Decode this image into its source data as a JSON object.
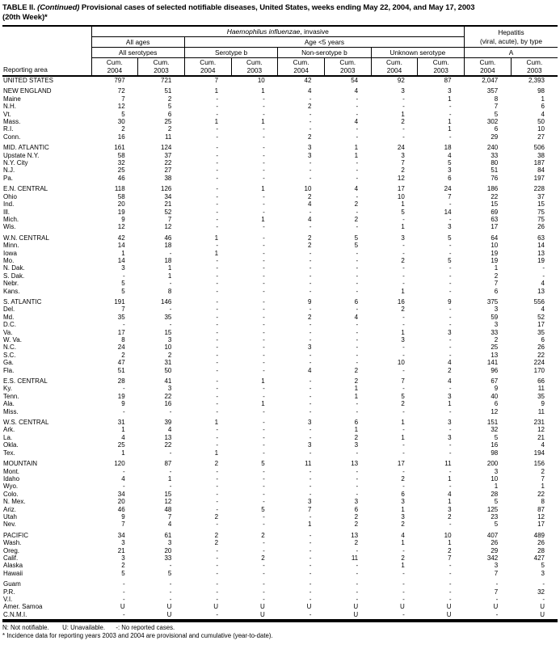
{
  "title": {
    "part1": "TABLE II. ",
    "continued": "(Continued)",
    "part2": " Provisional cases of selected notifiable diseases, United States, weeks ending May 22, 2004, and May 17, 2003",
    "line2": "(20th Week)*"
  },
  "header": {
    "reporting_area": "Reporting area",
    "hib_italic": "Haemophilus influenzae",
    "hib_rest": ", invasive",
    "hepatitis_line1": "Hepatitis",
    "hepatitis_line2": "(viral, acute), by type",
    "all_ages": "All ages",
    "age_under5": "Age <5 years",
    "all_serotypes": "All serotypes",
    "serotype_b": "Serotype b",
    "non_serotype_b": "Non-serotype b",
    "unknown_serotype": "Unknown serotype",
    "hep_a": "A",
    "cum_label": "Cum.",
    "years": [
      "2004",
      "2003"
    ]
  },
  "table": {
    "groups": [
      {
        "rows": [
          [
            "UNITED STATES",
            "797",
            "721",
            "7",
            "10",
            "42",
            "54",
            "92",
            "87",
            "2,047",
            "2,393"
          ]
        ]
      },
      {
        "rows": [
          [
            "NEW ENGLAND",
            "72",
            "51",
            "1",
            "1",
            "4",
            "4",
            "3",
            "3",
            "357",
            "98"
          ],
          [
            "Maine",
            "7",
            "2",
            "-",
            "-",
            "-",
            "-",
            "-",
            "1",
            "8",
            "1"
          ],
          [
            "N.H.",
            "12",
            "5",
            "-",
            "-",
            "2",
            "-",
            "-",
            "-",
            "7",
            "6"
          ],
          [
            "Vt.",
            "5",
            "6",
            "-",
            "-",
            "-",
            "-",
            "1",
            "-",
            "5",
            "4"
          ],
          [
            "Mass.",
            "30",
            "25",
            "1",
            "1",
            "-",
            "4",
            "2",
            "1",
            "302",
            "50"
          ],
          [
            "R.I.",
            "2",
            "2",
            "-",
            "-",
            "-",
            "-",
            "-",
            "1",
            "6",
            "10"
          ],
          [
            "Conn.",
            "16",
            "11",
            "-",
            "-",
            "2",
            "-",
            "-",
            "-",
            "29",
            "27"
          ]
        ]
      },
      {
        "rows": [
          [
            "MID. ATLANTIC",
            "161",
            "124",
            "-",
            "-",
            "3",
            "1",
            "24",
            "18",
            "240",
            "506"
          ],
          [
            "Upstate N.Y.",
            "58",
            "37",
            "-",
            "-",
            "3",
            "1",
            "3",
            "4",
            "33",
            "38"
          ],
          [
            "N.Y. City",
            "32",
            "22",
            "-",
            "-",
            "-",
            "-",
            "7",
            "5",
            "80",
            "187"
          ],
          [
            "N.J.",
            "25",
            "27",
            "-",
            "-",
            "-",
            "-",
            "2",
            "3",
            "51",
            "84"
          ],
          [
            "Pa.",
            "46",
            "38",
            "-",
            "-",
            "-",
            "-",
            "12",
            "6",
            "76",
            "197"
          ]
        ]
      },
      {
        "rows": [
          [
            "E.N. CENTRAL",
            "118",
            "126",
            "-",
            "1",
            "10",
            "4",
            "17",
            "24",
            "186",
            "228"
          ],
          [
            "Ohio",
            "58",
            "34",
            "-",
            "-",
            "2",
            "-",
            "10",
            "7",
            "22",
            "37"
          ],
          [
            "Ind.",
            "20",
            "21",
            "-",
            "-",
            "4",
            "2",
            "1",
            "-",
            "15",
            "15"
          ],
          [
            "Ill.",
            "19",
            "52",
            "-",
            "-",
            "-",
            "-",
            "5",
            "14",
            "69",
            "75"
          ],
          [
            "Mich.",
            "9",
            "7",
            "-",
            "1",
            "4",
            "2",
            "-",
            "-",
            "63",
            "75"
          ],
          [
            "Wis.",
            "12",
            "12",
            "-",
            "-",
            "-",
            "-",
            "1",
            "3",
            "17",
            "26"
          ]
        ]
      },
      {
        "rows": [
          [
            "W.N. CENTRAL",
            "42",
            "46",
            "1",
            "-",
            "2",
            "5",
            "3",
            "5",
            "64",
            "63"
          ],
          [
            "Minn.",
            "14",
            "18",
            "-",
            "-",
            "2",
            "5",
            "-",
            "-",
            "10",
            "14"
          ],
          [
            "Iowa",
            "1",
            "-",
            "1",
            "-",
            "-",
            "-",
            "-",
            "-",
            "19",
            "13"
          ],
          [
            "Mo.",
            "14",
            "18",
            "-",
            "-",
            "-",
            "-",
            "2",
            "5",
            "19",
            "19"
          ],
          [
            "N. Dak.",
            "3",
            "1",
            "-",
            "-",
            "-",
            "-",
            "-",
            "-",
            "1",
            "-"
          ],
          [
            "S. Dak.",
            "-",
            "1",
            "-",
            "-",
            "-",
            "-",
            "-",
            "-",
            "2",
            "-"
          ],
          [
            "Nebr.",
            "5",
            "-",
            "-",
            "-",
            "-",
            "-",
            "-",
            "-",
            "7",
            "4"
          ],
          [
            "Kans.",
            "5",
            "8",
            "-",
            "-",
            "-",
            "-",
            "1",
            "-",
            "6",
            "13"
          ]
        ]
      },
      {
        "rows": [
          [
            "S. ATLANTIC",
            "191",
            "146",
            "-",
            "-",
            "9",
            "6",
            "16",
            "9",
            "375",
            "556"
          ],
          [
            "Del.",
            "7",
            "-",
            "-",
            "-",
            "-",
            "-",
            "2",
            "-",
            "3",
            "4"
          ],
          [
            "Md.",
            "35",
            "35",
            "-",
            "-",
            "2",
            "4",
            "-",
            "-",
            "59",
            "52"
          ],
          [
            "D.C.",
            "-",
            "-",
            "-",
            "-",
            "-",
            "-",
            "-",
            "-",
            "3",
            "17"
          ],
          [
            "Va.",
            "17",
            "15",
            "-",
            "-",
            "-",
            "-",
            "1",
            "3",
            "33",
            "35"
          ],
          [
            "W. Va.",
            "8",
            "3",
            "-",
            "-",
            "-",
            "-",
            "3",
            "-",
            "2",
            "6"
          ],
          [
            "N.C.",
            "24",
            "10",
            "-",
            "-",
            "3",
            "-",
            "-",
            "-",
            "25",
            "26"
          ],
          [
            "S.C.",
            "2",
            "2",
            "-",
            "-",
            "-",
            "-",
            "-",
            "-",
            "13",
            "22"
          ],
          [
            "Ga.",
            "47",
            "31",
            "-",
            "-",
            "-",
            "-",
            "10",
            "4",
            "141",
            "224"
          ],
          [
            "Fla.",
            "51",
            "50",
            "-",
            "-",
            "4",
            "2",
            "-",
            "2",
            "96",
            "170"
          ]
        ]
      },
      {
        "rows": [
          [
            "E.S. CENTRAL",
            "28",
            "41",
            "-",
            "1",
            "-",
            "2",
            "7",
            "4",
            "67",
            "66"
          ],
          [
            "Ky.",
            "-",
            "3",
            "-",
            "-",
            "-",
            "1",
            "-",
            "-",
            "9",
            "11"
          ],
          [
            "Tenn.",
            "19",
            "22",
            "-",
            "-",
            "-",
            "1",
            "5",
            "3",
            "40",
            "35"
          ],
          [
            "Ala.",
            "9",
            "16",
            "-",
            "1",
            "-",
            "-",
            "2",
            "1",
            "6",
            "9"
          ],
          [
            "Miss.",
            "-",
            "-",
            "-",
            "-",
            "-",
            "-",
            "-",
            "-",
            "12",
            "11"
          ]
        ]
      },
      {
        "rows": [
          [
            "W.S. CENTRAL",
            "31",
            "39",
            "1",
            "-",
            "3",
            "6",
            "1",
            "3",
            "151",
            "231"
          ],
          [
            "Ark.",
            "1",
            "4",
            "-",
            "-",
            "-",
            "1",
            "-",
            "-",
            "32",
            "12"
          ],
          [
            "La.",
            "4",
            "13",
            "-",
            "-",
            "-",
            "2",
            "1",
            "3",
            "5",
            "21"
          ],
          [
            "Okla.",
            "25",
            "22",
            "-",
            "-",
            "3",
            "3",
            "-",
            "-",
            "16",
            "4"
          ],
          [
            "Tex.",
            "1",
            "-",
            "1",
            "-",
            "-",
            "-",
            "-",
            "-",
            "98",
            "194"
          ]
        ]
      },
      {
        "rows": [
          [
            "MOUNTAIN",
            "120",
            "87",
            "2",
            "5",
            "11",
            "13",
            "17",
            "11",
            "200",
            "156"
          ],
          [
            "Mont.",
            "-",
            "-",
            "-",
            "-",
            "-",
            "-",
            "-",
            "-",
            "3",
            "2"
          ],
          [
            "Idaho",
            "4",
            "1",
            "-",
            "-",
            "-",
            "-",
            "2",
            "1",
            "10",
            "7"
          ],
          [
            "Wyo.",
            "-",
            "-",
            "-",
            "-",
            "-",
            "-",
            "-",
            "-",
            "1",
            "1"
          ],
          [
            "Colo.",
            "34",
            "15",
            "-",
            "-",
            "-",
            "-",
            "6",
            "4",
            "28",
            "22"
          ],
          [
            "N. Mex.",
            "20",
            "12",
            "-",
            "-",
            "3",
            "3",
            "3",
            "1",
            "5",
            "8"
          ],
          [
            "Ariz.",
            "46",
            "48",
            "-",
            "5",
            "7",
            "6",
            "1",
            "3",
            "125",
            "87"
          ],
          [
            "Utah",
            "9",
            "7",
            "2",
            "-",
            "-",
            "2",
            "3",
            "2",
            "23",
            "12"
          ],
          [
            "Nev.",
            "7",
            "4",
            "-",
            "-",
            "1",
            "2",
            "2",
            "-",
            "5",
            "17"
          ]
        ]
      },
      {
        "rows": [
          [
            "PACIFIC",
            "34",
            "61",
            "2",
            "2",
            "-",
            "13",
            "4",
            "10",
            "407",
            "489"
          ],
          [
            "Wash.",
            "3",
            "3",
            "2",
            "-",
            "-",
            "2",
            "1",
            "1",
            "26",
            "26"
          ],
          [
            "Oreg.",
            "21",
            "20",
            "-",
            "-",
            "-",
            "-",
            "-",
            "2",
            "29",
            "28"
          ],
          [
            "Calif.",
            "3",
            "33",
            "-",
            "2",
            "-",
            "11",
            "2",
            "7",
            "342",
            "427"
          ],
          [
            "Alaska",
            "2",
            "-",
            "-",
            "-",
            "-",
            "-",
            "1",
            "-",
            "3",
            "5"
          ],
          [
            "Hawaii",
            "5",
            "5",
            "-",
            "-",
            "-",
            "-",
            "-",
            "-",
            "7",
            "3"
          ]
        ]
      },
      {
        "rows": [
          [
            "Guam",
            "-",
            "-",
            "-",
            "-",
            "-",
            "-",
            "-",
            "-",
            "-",
            "-"
          ],
          [
            "P.R.",
            "-",
            "-",
            "-",
            "-",
            "-",
            "-",
            "-",
            "-",
            "7",
            "32"
          ],
          [
            "V.I.",
            "-",
            "-",
            "-",
            "-",
            "-",
            "-",
            "-",
            "-",
            "-",
            "-"
          ],
          [
            "Amer. Samoa",
            "U",
            "U",
            "U",
            "U",
            "U",
            "U",
            "U",
            "U",
            "U",
            "U"
          ],
          [
            "C.N.M.I.",
            "-",
            "U",
            "-",
            "U",
            "-",
            "U",
            "-",
            "U",
            "-",
            "U"
          ]
        ]
      }
    ]
  },
  "footnotes": {
    "legend_n": "N: Not notifiable.",
    "legend_u": "U: Unavailable.",
    "legend_dash": "-: No reported cases.",
    "note": "* Incidence data for reporting years 2003 and 2004 are provisional and cumulative (year-to-date)."
  }
}
